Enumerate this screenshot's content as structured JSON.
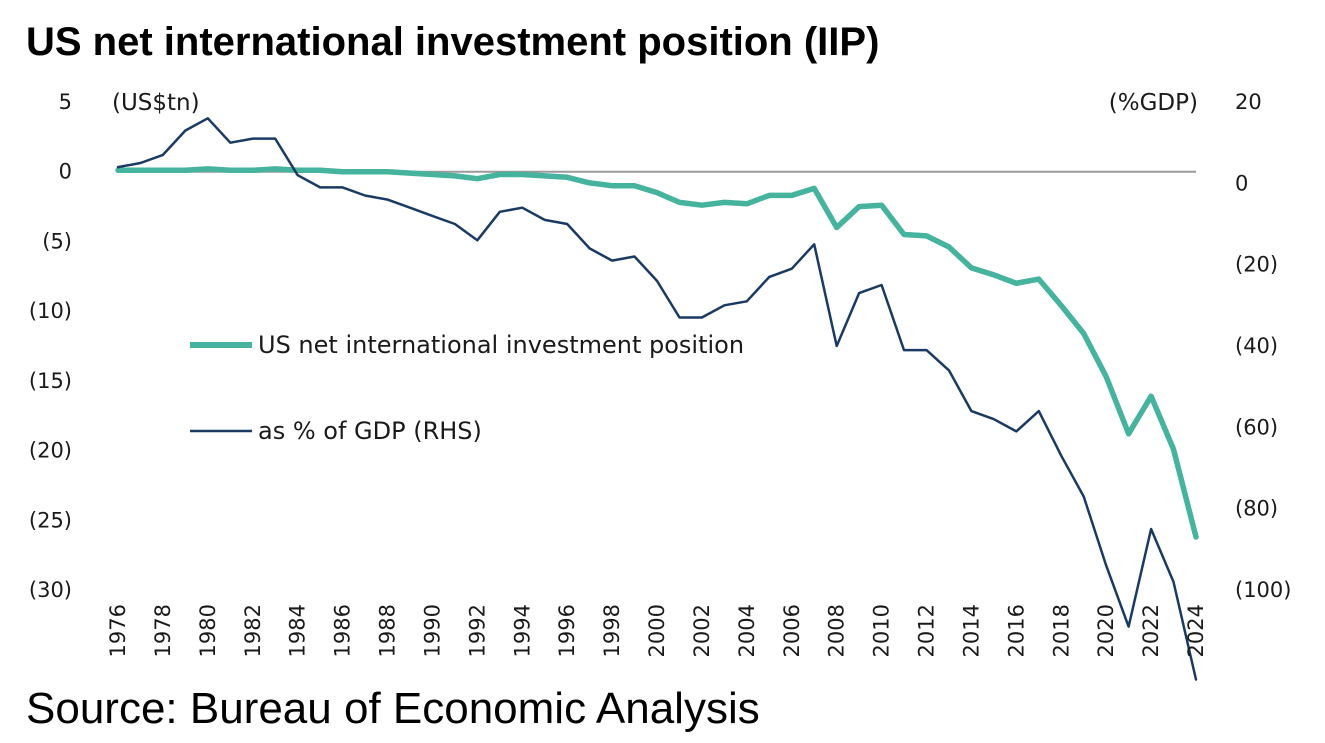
{
  "title": "US net international investment position (IIP)",
  "source": "Source: Bureau of Economic Analysis",
  "chart_data": {
    "type": "line",
    "title": "US net international investment position (IIP)",
    "x": [
      1976,
      1977,
      1978,
      1979,
      1980,
      1981,
      1982,
      1983,
      1984,
      1985,
      1986,
      1987,
      1988,
      1989,
      1990,
      1991,
      1992,
      1993,
      1994,
      1995,
      1996,
      1997,
      1998,
      1999,
      2000,
      2001,
      2002,
      2003,
      2004,
      2005,
      2006,
      2007,
      2008,
      2009,
      2010,
      2011,
      2012,
      2013,
      2014,
      2015,
      2016,
      2017,
      2018,
      2019,
      2020,
      2021,
      2022,
      2023,
      2024
    ],
    "x_tick_labels": [
      "1976",
      "1978",
      "1980",
      "1982",
      "1984",
      "1986",
      "1988",
      "1990",
      "1992",
      "1994",
      "1996",
      "1998",
      "2000",
      "2002",
      "2004",
      "2006",
      "2008",
      "2010",
      "2012",
      "2014",
      "2016",
      "2018",
      "2020",
      "2022",
      "2024"
    ],
    "y_left": {
      "unit_label": "(US$tn)",
      "ylim": [
        -30,
        5
      ],
      "ticks": [
        5,
        0,
        -5,
        -10,
        -15,
        -20,
        -25,
        -30
      ],
      "tick_labels": [
        "5",
        "0",
        "(5)",
        "(10)",
        "(15)",
        "(20)",
        "(25)",
        "(30)"
      ]
    },
    "y_right": {
      "unit_label": "(%GDP)",
      "ylim": [
        -100,
        20
      ],
      "ticks": [
        20,
        0,
        -20,
        -40,
        -60,
        -80,
        -100
      ],
      "tick_labels": [
        "20",
        "0",
        "(20)",
        "(40)",
        "(60)",
        "(80)",
        "(100)"
      ]
    },
    "series": [
      {
        "name": "US net international investment position",
        "axis": "left",
        "color": "#45b39d",
        "values": [
          0.1,
          0.1,
          0.1,
          0.1,
          0.2,
          0.1,
          0.1,
          0.2,
          0.1,
          0.1,
          0.0,
          0.0,
          0.0,
          -0.1,
          -0.2,
          -0.3,
          -0.5,
          -0.2,
          -0.2,
          -0.3,
          -0.4,
          -0.8,
          -1.0,
          -1.0,
          -1.5,
          -2.2,
          -2.4,
          -2.2,
          -2.3,
          -1.7,
          -1.7,
          -1.2,
          -4.0,
          -2.5,
          -2.4,
          -4.5,
          -4.6,
          -5.4,
          -6.9,
          -7.4,
          -8.0,
          -7.7,
          -9.6,
          -11.6,
          -14.7,
          -18.8,
          -16.1,
          -19.9,
          -26.2
        ]
      },
      {
        "name": "as % of GDP (RHS)",
        "axis": "right",
        "color": "#1a3a63",
        "values": [
          4,
          5,
          7,
          13,
          16,
          10,
          11,
          11,
          2,
          -1,
          -1,
          -3,
          -4,
          -6,
          -8,
          -10,
          -14,
          -7,
          -6,
          -9,
          -10,
          -16,
          -19,
          -18,
          -24,
          -33,
          -33,
          -30,
          -29,
          -23,
          -21,
          -15,
          -40,
          -27,
          -25,
          -41,
          -41,
          -46,
          -56,
          -58,
          -61,
          -56,
          -67,
          -77,
          -94,
          -109,
          -85,
          -98,
          -122
        ]
      }
    ],
    "legend": {
      "placement": "center-left",
      "entries": [
        "US net international investment position",
        "as % of GDP (RHS)"
      ]
    },
    "zero_line": true,
    "grid": false
  }
}
